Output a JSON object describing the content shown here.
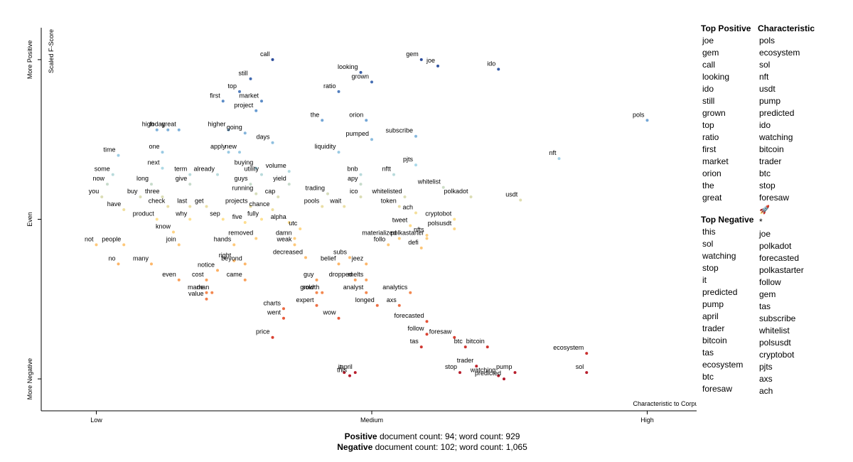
{
  "chart_data": {
    "type": "scatter",
    "x_label": "Characteristic to Corpus",
    "y_label": "Scaled F-Score",
    "xlim": [
      -0.1,
      1.1
    ],
    "ylim": [
      -0.1,
      1.1
    ],
    "xticks": [
      {
        "value": 0,
        "label": "Low"
      },
      {
        "value": 0.5,
        "label": "Medium"
      },
      {
        "value": 1,
        "label": "High"
      }
    ],
    "yticks": [
      {
        "value": 0,
        "label": "More Negative"
      },
      {
        "value": 0.5,
        "label": "Even"
      },
      {
        "value": 1,
        "label": "More Positive"
      }
    ],
    "colors": [
      "#b2182b",
      "#e34a33",
      "#fdae61",
      "#fee090",
      "#abd9e9",
      "#6a9ed3",
      "#2b4c9b"
    ],
    "labels": [
      "call",
      "gem",
      "joe",
      "ido",
      "looking",
      "still",
      "grown",
      "ratio",
      "top",
      "first",
      "market",
      "project",
      "the",
      "orion",
      "pols",
      "today",
      "high",
      "great",
      "higher",
      "going",
      "subscribe",
      "pumped",
      "days",
      "time",
      "one",
      "apply",
      "new",
      "liquidity",
      "nft",
      "pjts",
      "next",
      "some",
      "now",
      "long",
      "give",
      "term",
      "already",
      "buying",
      "utility",
      "volume",
      "guys",
      "yield",
      "bnb",
      "nftt",
      "apy",
      "whitelist",
      "you",
      "buy",
      "three",
      "running",
      "cap",
      "trading",
      "ico",
      "whitelisted",
      "polkadot",
      "usdt",
      "have",
      "check",
      "last",
      "get",
      "projects",
      "chance",
      "pools",
      "wait",
      "token",
      "ach",
      "product",
      "why",
      "sep",
      "five",
      "fully",
      "alpha",
      "cryptobot",
      "tweet",
      "polsusdt",
      "know",
      "utc",
      "nfts",
      "removed",
      "damn",
      "materialized",
      "not",
      "people",
      "join",
      "hands",
      "weak",
      "follo",
      "defi",
      "polkastarter",
      "decreased",
      "subs",
      "right",
      "belief",
      "no",
      "many",
      "notice",
      "beyond",
      "jeez",
      "even",
      "cost",
      "came",
      "guy",
      "dropped",
      "melts",
      "analyst",
      "growth",
      "analytics",
      "axs",
      "made",
      "man",
      "value",
      "sold",
      "expert",
      "longed",
      "charts",
      "went",
      "wow",
      "forecasted",
      "price",
      "foresaw",
      "follow",
      "btc",
      "bitcoin",
      "tas",
      "stop",
      "trader",
      "ecosystem",
      "it",
      "april",
      "this",
      "pump",
      "watching",
      "predicted",
      "sol"
    ],
    "x": [
      0.32,
      0.59,
      0.62,
      0.73,
      0.48,
      0.28,
      0.5,
      0.44,
      0.26,
      0.23,
      0.3,
      0.29,
      0.41,
      0.49,
      1.0,
      0.13,
      0.11,
      0.15,
      0.24,
      0.27,
      0.58,
      0.5,
      0.32,
      0.04,
      0.12,
      0.24,
      0.26,
      0.44,
      0.84,
      0.58,
      0.12,
      0.03,
      0.02,
      0.1,
      0.17,
      0.17,
      0.22,
      0.29,
      0.3,
      0.35,
      0.28,
      0.35,
      0.48,
      0.54,
      0.48,
      0.63,
      0.01,
      0.08,
      0.12,
      0.29,
      0.33,
      0.42,
      0.48,
      0.56,
      0.68,
      0.77,
      0.05,
      0.13,
      0.17,
      0.2,
      0.28,
      0.32,
      0.41,
      0.45,
      0.55,
      0.58,
      0.11,
      0.17,
      0.23,
      0.27,
      0.3,
      0.35,
      0.65,
      0.57,
      0.65,
      0.14,
      0.37,
      0.6,
      0.29,
      0.36,
      0.55,
      0.0,
      0.05,
      0.15,
      0.25,
      0.36,
      0.53,
      0.59,
      0.6,
      0.38,
      0.46,
      0.25,
      0.44,
      0.04,
      0.1,
      0.22,
      0.27,
      0.49,
      0.15,
      0.2,
      0.27,
      0.4,
      0.47,
      0.49,
      0.49,
      0.41,
      0.57,
      0.55,
      0.2,
      0.21,
      0.2,
      0.4,
      0.4,
      0.51,
      0.34,
      0.34,
      0.44,
      0.6,
      0.32,
      0.65,
      0.6,
      0.67,
      0.71,
      0.59,
      0.66,
      0.69,
      0.89,
      0.45,
      0.47,
      0.46,
      0.76,
      0.73,
      0.74,
      0.89
    ],
    "values": [
      1.0,
      1.0,
      0.98,
      0.97,
      0.96,
      0.94,
      0.93,
      0.9,
      0.9,
      0.87,
      0.87,
      0.84,
      0.81,
      0.81,
      0.81,
      0.78,
      0.78,
      0.78,
      0.78,
      0.77,
      0.76,
      0.75,
      0.74,
      0.7,
      0.71,
      0.71,
      0.71,
      0.71,
      0.69,
      0.67,
      0.66,
      0.64,
      0.61,
      0.61,
      0.61,
      0.64,
      0.64,
      0.66,
      0.64,
      0.65,
      0.61,
      0.61,
      0.64,
      0.64,
      0.61,
      0.6,
      0.57,
      0.57,
      0.57,
      0.58,
      0.57,
      0.58,
      0.57,
      0.57,
      0.57,
      0.56,
      0.53,
      0.54,
      0.54,
      0.54,
      0.54,
      0.53,
      0.54,
      0.54,
      0.54,
      0.52,
      0.5,
      0.5,
      0.5,
      0.49,
      0.5,
      0.49,
      0.5,
      0.48,
      0.47,
      0.46,
      0.47,
      0.45,
      0.44,
      0.44,
      0.44,
      0.42,
      0.42,
      0.42,
      0.42,
      0.42,
      0.42,
      0.41,
      0.44,
      0.38,
      0.38,
      0.37,
      0.36,
      0.36,
      0.36,
      0.34,
      0.36,
      0.36,
      0.31,
      0.31,
      0.31,
      0.31,
      0.31,
      0.31,
      0.27,
      0.27,
      0.27,
      0.23,
      0.27,
      0.27,
      0.25,
      0.27,
      0.23,
      0.23,
      0.22,
      0.19,
      0.19,
      0.18,
      0.13,
      0.13,
      0.14,
      0.1,
      0.1,
      0.1,
      0.02,
      0.04,
      0.08,
      0.02,
      0.02,
      0.01,
      0.02,
      0.01,
      0.0,
      0.02
    ]
  },
  "sidebar": {
    "top_positive": {
      "title": "Top Positive",
      "terms": [
        "joe",
        "gem",
        "call",
        "looking",
        "ido",
        "still",
        "grown",
        "top",
        "ratio",
        "first",
        "market",
        "orion",
        "the",
        "great"
      ]
    },
    "top_negative": {
      "title": "Top Negative",
      "terms": [
        "this",
        "sol",
        "watching",
        "stop",
        "it",
        "predicted",
        "pump",
        "april",
        "trader",
        "bitcoin",
        "tas",
        "ecosystem",
        "btc",
        "foresaw"
      ]
    },
    "characteristic": {
      "title": "Characteristic",
      "terms": [
        "pols",
        "ecosystem",
        "sol",
        "nft",
        "usdt",
        "pump",
        "predicted",
        "ido",
        "watching",
        "bitcoin",
        "trader",
        "btc",
        "stop",
        "foresaw",
        "🚀",
        "*",
        "joe",
        "polkadot",
        "forecasted",
        "polkastarter",
        "follow",
        "gem",
        "tas",
        "subscribe",
        "whitelist",
        "polsusdt",
        "cryptobot",
        "pjts",
        "axs",
        "ach"
      ]
    }
  },
  "footer": [
    {
      "bold": "Positive",
      "text": "document count: 94; word count: 929"
    },
    {
      "bold": "Negative",
      "text": "document count: 102; word count: 1,065"
    }
  ]
}
